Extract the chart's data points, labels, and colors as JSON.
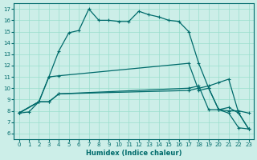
{
  "xlabel": "Humidex (Indice chaleur)",
  "bg_color": "#cceee8",
  "line_color": "#006b6b",
  "grid_color": "#99ddcc",
  "xlim": [
    -0.5,
    23.5
  ],
  "ylim": [
    5.5,
    17.5
  ],
  "xticks": [
    0,
    1,
    2,
    3,
    4,
    5,
    6,
    7,
    8,
    9,
    10,
    11,
    12,
    13,
    14,
    15,
    16,
    17,
    18,
    19,
    20,
    21,
    22,
    23
  ],
  "yticks": [
    6,
    7,
    8,
    9,
    10,
    11,
    12,
    13,
    14,
    15,
    16,
    17
  ],
  "line1_x": [
    0,
    1,
    2,
    3,
    4,
    5,
    6,
    7,
    8,
    9,
    10,
    11,
    12,
    13,
    14,
    15,
    16,
    17,
    18,
    19,
    20,
    21,
    22,
    23
  ],
  "line1_y": [
    7.8,
    7.9,
    8.8,
    11.0,
    13.3,
    14.9,
    15.1,
    17.0,
    16.0,
    16.0,
    15.9,
    15.9,
    16.8,
    16.5,
    16.3,
    16.0,
    15.9,
    15.0,
    12.2,
    10.0,
    8.1,
    7.8,
    6.5,
    6.4
  ],
  "line2_x": [
    0,
    2,
    3,
    4,
    17,
    18,
    19,
    20,
    21,
    22,
    23
  ],
  "line2_y": [
    7.8,
    8.8,
    11.0,
    11.1,
    12.2,
    9.8,
    10.0,
    8.1,
    8.0,
    8.0,
    7.8
  ],
  "line3_x": [
    0,
    2,
    3,
    4,
    17,
    18,
    19,
    20,
    21,
    22,
    23
  ],
  "line3_y": [
    7.8,
    8.8,
    8.8,
    9.5,
    10.0,
    10.2,
    8.1,
    8.1,
    8.3,
    7.8,
    6.4
  ],
  "line4_x": [
    0,
    2,
    3,
    4,
    17,
    18,
    19,
    20,
    21,
    22,
    23
  ],
  "line4_y": [
    7.8,
    8.8,
    8.8,
    9.5,
    9.8,
    10.0,
    10.2,
    10.5,
    10.8,
    7.8,
    6.4
  ]
}
